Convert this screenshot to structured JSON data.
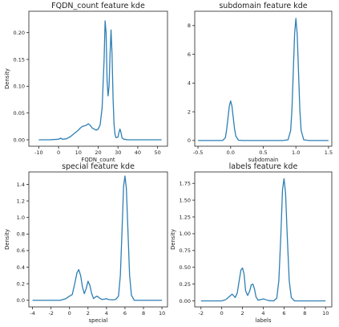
{
  "chart_data": [
    {
      "type": "line",
      "title": "FQDN_count feature kde",
      "xlabel": "FQDN_count",
      "ylabel": "Density",
      "xlim": [
        -15,
        55
      ],
      "ylim": [
        -0.012,
        0.24
      ],
      "xticks": [
        -10,
        0,
        10,
        20,
        30,
        40,
        50
      ],
      "yticks": [
        0.0,
        0.05,
        0.1,
        0.15,
        0.2
      ],
      "ytick_labels": [
        "0.00",
        "0.05",
        "0.10",
        "0.15",
        "0.20"
      ],
      "series": [
        {
          "color": "#2f7fb5",
          "x": [
            -10,
            -5,
            0,
            1,
            2,
            4,
            6,
            8,
            10,
            11,
            12,
            13,
            14,
            15,
            16,
            17,
            18,
            19,
            20,
            21,
            22,
            23,
            23.5,
            24,
            24.5,
            25,
            25.5,
            26,
            26.5,
            27,
            27.5,
            28,
            28.5,
            29,
            30,
            30.5,
            31,
            31.5,
            32,
            33,
            35,
            40,
            45,
            50,
            52
          ],
          "y": [
            0.0,
            0.0,
            0.001,
            0.003,
            0.001,
            0.002,
            0.006,
            0.012,
            0.018,
            0.022,
            0.025,
            0.026,
            0.027,
            0.03,
            0.027,
            0.022,
            0.02,
            0.018,
            0.02,
            0.028,
            0.06,
            0.15,
            0.222,
            0.2,
            0.11,
            0.082,
            0.1,
            0.16,
            0.205,
            0.16,
            0.08,
            0.03,
            0.01,
            0.004,
            0.005,
            0.014,
            0.02,
            0.014,
            0.004,
            0.001,
            0.0,
            0.0,
            0.0,
            0.0,
            0.0
          ]
        }
      ]
    },
    {
      "type": "line",
      "title": "subdomain feature kde",
      "xlabel": "subdomain",
      "ylabel": "",
      "xlim": [
        -0.55,
        1.55
      ],
      "ylim": [
        -0.4,
        9.0
      ],
      "xticks": [
        -0.5,
        0.0,
        0.5,
        1.0,
        1.5
      ],
      "xtick_labels": [
        "-0.5",
        "0.0",
        "0.5",
        "1.0",
        "1.5"
      ],
      "yticks": [
        0,
        2,
        4,
        6,
        8
      ],
      "series": [
        {
          "color": "#2f7fb5",
          "x": [
            -0.5,
            -0.2,
            -0.12,
            -0.08,
            -0.06,
            -0.04,
            -0.02,
            0.0,
            0.02,
            0.04,
            0.06,
            0.08,
            0.12,
            0.2,
            0.6,
            0.8,
            0.88,
            0.92,
            0.94,
            0.96,
            0.98,
            1.0,
            1.02,
            1.04,
            1.06,
            1.08,
            1.12,
            1.2,
            1.5
          ],
          "y": [
            0.0,
            0.0,
            0.0,
            0.2,
            0.8,
            1.6,
            2.4,
            2.75,
            2.4,
            1.6,
            0.8,
            0.3,
            0.02,
            0.0,
            0.0,
            0.0,
            0.05,
            0.7,
            2.2,
            4.8,
            7.4,
            8.5,
            7.4,
            4.8,
            2.2,
            0.7,
            0.05,
            0.0,
            0.0
          ]
        }
      ]
    },
    {
      "type": "line",
      "title": "special feature kde",
      "xlabel": "special",
      "ylabel": "Density",
      "xlim": [
        -4.4,
        10.6
      ],
      "ylim": [
        -0.08,
        1.55
      ],
      "xticks": [
        -4,
        -2,
        0,
        2,
        4,
        6,
        8,
        10
      ],
      "yticks": [
        0.0,
        0.2,
        0.4,
        0.6,
        0.8,
        1.0,
        1.2,
        1.4
      ],
      "ytick_labels": [
        "0.0",
        "0.2",
        "0.4",
        "0.6",
        "0.8",
        "1.0",
        "1.2",
        "1.4"
      ],
      "series": [
        {
          "color": "#2f7fb5",
          "x": [
            -4,
            -1,
            -0.4,
            0,
            0.3,
            0.6,
            0.8,
            1.0,
            1.2,
            1.4,
            1.6,
            1.8,
            2.0,
            2.2,
            2.4,
            2.6,
            2.8,
            3.0,
            3.2,
            3.5,
            3.8,
            4.0,
            4.2,
            4.6,
            5.0,
            5.3,
            5.5,
            5.7,
            5.85,
            6.0,
            6.15,
            6.3,
            6.5,
            6.7,
            7.0,
            8.0,
            10.0
          ],
          "y": [
            0.0,
            0.0,
            0.02,
            0.05,
            0.07,
            0.22,
            0.33,
            0.37,
            0.3,
            0.16,
            0.08,
            0.14,
            0.23,
            0.18,
            0.08,
            0.02,
            0.04,
            0.05,
            0.03,
            0.01,
            0.015,
            0.02,
            0.01,
            0.005,
            0.01,
            0.05,
            0.3,
            0.9,
            1.38,
            1.5,
            1.35,
            0.9,
            0.3,
            0.06,
            0.0,
            0.0,
            0.0
          ]
        }
      ]
    },
    {
      "type": "line",
      "title": "labels feature kde",
      "xlabel": "labels",
      "ylabel": "Density",
      "xlim": [
        -2.6,
        10.6
      ],
      "ylim": [
        -0.09,
        1.92
      ],
      "xticks": [
        -2,
        0,
        2,
        4,
        6,
        8,
        10
      ],
      "yticks": [
        0.0,
        0.25,
        0.5,
        0.75,
        1.0,
        1.25,
        1.5,
        1.75
      ],
      "ytick_labels": [
        "0.00",
        "0.25",
        "0.50",
        "0.75",
        "1.00",
        "1.25",
        "1.50",
        "1.75"
      ],
      "series": [
        {
          "color": "#2f7fb5",
          "x": [
            -2,
            0,
            0.4,
            0.7,
            1.0,
            1.3,
            1.5,
            1.7,
            1.85,
            2.0,
            2.15,
            2.3,
            2.5,
            2.7,
            2.85,
            3.0,
            3.15,
            3.3,
            3.5,
            3.8,
            4.0,
            4.2,
            4.5,
            5.0,
            5.3,
            5.5,
            5.7,
            5.85,
            6.0,
            6.15,
            6.3,
            6.5,
            6.7,
            7.0,
            8.0,
            10.0
          ],
          "y": [
            0.0,
            0.0,
            0.02,
            0.06,
            0.1,
            0.05,
            0.12,
            0.32,
            0.46,
            0.49,
            0.4,
            0.15,
            0.08,
            0.15,
            0.24,
            0.25,
            0.18,
            0.06,
            0.01,
            0.02,
            0.03,
            0.02,
            0.005,
            0.0,
            0.04,
            0.3,
            1.0,
            1.65,
            1.82,
            1.6,
            1.0,
            0.3,
            0.05,
            0.0,
            0.0,
            0.0
          ]
        }
      ]
    }
  ]
}
